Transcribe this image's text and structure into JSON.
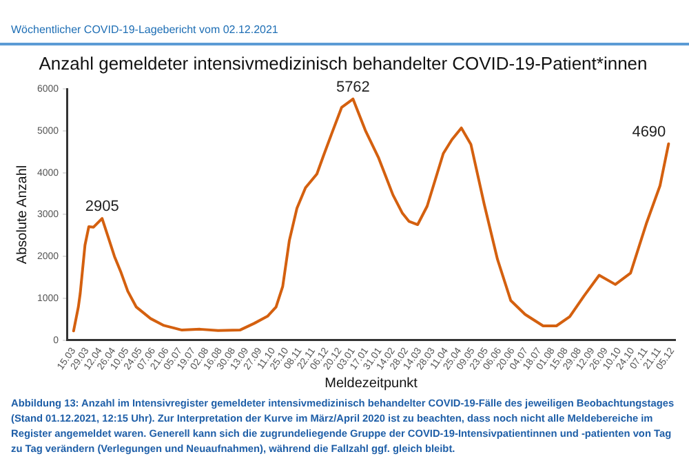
{
  "chart_data": {
    "type": "line",
    "title": "Anzahl gemeldeter intensivmedizinisch behandelter COVID-19-Patient*innen",
    "xlabel": "Meldezeitpunkt",
    "ylabel": "Absolute Anzahl",
    "annotations": [
      "Wöchentlicher COVID-19-Lagebericht vom 02.12.2021",
      "Abbildung 13: Anzahl im Intensivregister gemeldeter intensivmedizinisch behandelter COVID-19-Fälle des jeweiligen Beobachtungstages (Stand 01.12.2021, 12:15 Uhr). Zur Interpretation der Kurve im März/April 2020 ist zu beachten, dass noch nicht alle Meldebereiche im Register angemeldet waren. Generell kann sich die zugrundeliegende Gruppe der COVID-19-Intensivpatientinnen und -patienten von Tag zu Tag verändern (Verlegungen und Neuaufnahmen), während die Fallzahl ggf. gleich bleibt.",
      {
        "text": "2905",
        "x": "2020-04-14",
        "y": 2905
      },
      {
        "text": "5762",
        "x": "2021-01-03",
        "y": 5762
      },
      {
        "text": "4690",
        "x": "2021-12-01",
        "y": 4690
      }
    ],
    "x": [
      "2020-03-15",
      "2020-03-20",
      "2020-03-22",
      "2020-03-27",
      "2020-03-31",
      "2020-04-05",
      "2020-04-14",
      "2020-04-20",
      "2020-04-27",
      "2020-05-04",
      "2020-05-11",
      "2020-05-20",
      "2020-06-04",
      "2020-06-18",
      "2020-07-07",
      "2020-07-26",
      "2020-08-14",
      "2020-09-06",
      "2020-09-21",
      "2020-10-05",
      "2020-10-14",
      "2020-10-21",
      "2020-10-28",
      "2020-11-05",
      "2020-11-14",
      "2020-11-26",
      "2020-12-03",
      "2020-12-12",
      "2020-12-22",
      "2021-01-03",
      "2021-01-16",
      "2021-01-30",
      "2021-02-14",
      "2021-02-24",
      "2021-03-03",
      "2021-03-12",
      "2021-03-22",
      "2021-04-08",
      "2021-04-17",
      "2021-04-27",
      "2021-05-07",
      "2021-05-21",
      "2021-06-04",
      "2021-06-18",
      "2021-07-03",
      "2021-07-22",
      "2021-08-05",
      "2021-08-19",
      "2021-09-03",
      "2021-09-19",
      "2021-10-06",
      "2021-10-22",
      "2021-11-08",
      "2021-11-22",
      "2021-12-01"
    ],
    "series": [
      {
        "color": "#d4600f",
        "values": [
          220,
          790,
          1120,
          2270,
          2710,
          2700,
          2905,
          2490,
          2000,
          1610,
          1170,
          790,
          515,
          350,
          240,
          260,
          230,
          240,
          400,
          570,
          790,
          1280,
          2380,
          3150,
          3640,
          3970,
          4410,
          4960,
          5560,
          5762,
          5010,
          4350,
          3470,
          3030,
          2835,
          2760,
          3200,
          4460,
          4790,
          5070,
          4680,
          3250,
          1930,
          945,
          615,
          340,
          340,
          560,
          1055,
          1550,
          1330,
          1600,
          2810,
          3690,
          4690
        ]
      }
    ],
    "xlim": [
      "2020-03-08",
      "2021-12-08"
    ],
    "xticks": [
      {
        "value": "2020-03-15",
        "label": "15.03"
      },
      {
        "value": "2020-03-29",
        "label": "29.03"
      },
      {
        "value": "2020-04-12",
        "label": "12.04"
      },
      {
        "value": "2020-04-26",
        "label": "26.04"
      },
      {
        "value": "2020-05-10",
        "label": "10.05"
      },
      {
        "value": "2020-05-24",
        "label": "24.05"
      },
      {
        "value": "2020-06-07",
        "label": "07.06"
      },
      {
        "value": "2020-06-21",
        "label": "21.06"
      },
      {
        "value": "2020-07-05",
        "label": "05.07"
      },
      {
        "value": "2020-07-19",
        "label": "19.07"
      },
      {
        "value": "2020-08-02",
        "label": "02.08"
      },
      {
        "value": "2020-08-16",
        "label": "16.08"
      },
      {
        "value": "2020-08-30",
        "label": "30.08"
      },
      {
        "value": "2020-09-13",
        "label": "13.09"
      },
      {
        "value": "2020-09-27",
        "label": "27.09"
      },
      {
        "value": "2020-10-11",
        "label": "11.10"
      },
      {
        "value": "2020-10-25",
        "label": "25.10"
      },
      {
        "value": "2020-11-08",
        "label": "08.11"
      },
      {
        "value": "2020-11-22",
        "label": "22.11"
      },
      {
        "value": "2020-12-06",
        "label": "06.12"
      },
      {
        "value": "2020-12-20",
        "label": "20.12"
      },
      {
        "value": "2021-01-03",
        "label": "03.01"
      },
      {
        "value": "2021-01-17",
        "label": "17.01"
      },
      {
        "value": "2021-01-31",
        "label": "31.01"
      },
      {
        "value": "2021-02-14",
        "label": "14.02"
      },
      {
        "value": "2021-02-28",
        "label": "28.02"
      },
      {
        "value": "2021-03-14",
        "label": "14.03"
      },
      {
        "value": "2021-03-28",
        "label": "28.03"
      },
      {
        "value": "2021-04-11",
        "label": "11.04"
      },
      {
        "value": "2021-04-25",
        "label": "25.04"
      },
      {
        "value": "2021-05-09",
        "label": "09.05"
      },
      {
        "value": "2021-05-23",
        "label": "23.05"
      },
      {
        "value": "2021-06-06",
        "label": "06.06"
      },
      {
        "value": "2021-06-20",
        "label": "20.06"
      },
      {
        "value": "2021-07-04",
        "label": "04.07"
      },
      {
        "value": "2021-07-18",
        "label": "18.07"
      },
      {
        "value": "2021-08-01",
        "label": "01.08"
      },
      {
        "value": "2021-08-15",
        "label": "15.08"
      },
      {
        "value": "2021-08-29",
        "label": "29.08"
      },
      {
        "value": "2021-09-12",
        "label": "12.09"
      },
      {
        "value": "2021-09-26",
        "label": "26.09"
      },
      {
        "value": "2021-10-10",
        "label": "10.10"
      },
      {
        "value": "2021-10-24",
        "label": "24.10"
      },
      {
        "value": "2021-11-07",
        "label": "07.11"
      },
      {
        "value": "2021-11-21",
        "label": "21.11"
      },
      {
        "value": "2021-12-05",
        "label": "05.12"
      }
    ],
    "ylim": [
      0,
      6000
    ],
    "yticks": [
      0,
      1000,
      2000,
      3000,
      4000,
      5000,
      6000
    ],
    "grid": false,
    "legend": false,
    "marker": "none",
    "line_style": "solid"
  }
}
